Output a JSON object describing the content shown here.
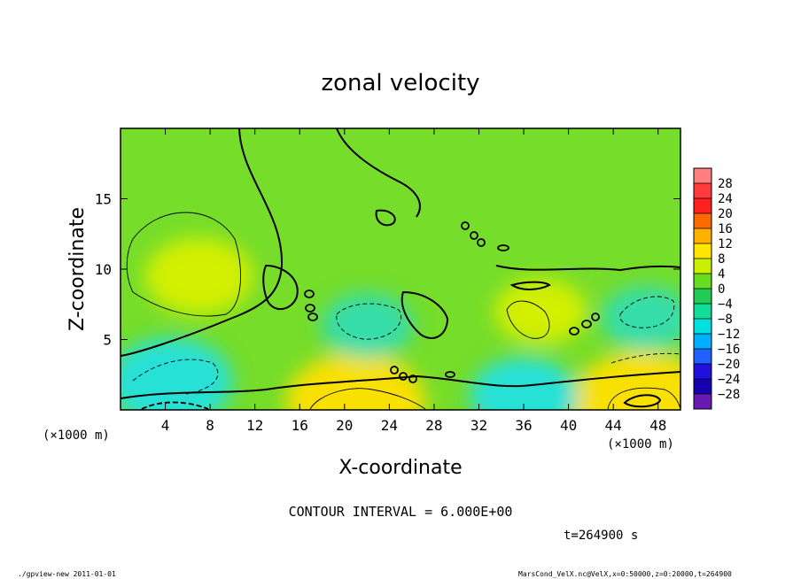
{
  "chart_data": {
    "type": "heatmap",
    "title": "zonal velocity",
    "xlabel": "X-coordinate",
    "ylabel": "Z-coordinate",
    "x_unit": "(×1000 m)",
    "y_unit": "(×1000 m)",
    "xlim": [
      0,
      50
    ],
    "ylim": [
      0,
      20
    ],
    "x_ticks": [
      4,
      8,
      12,
      16,
      20,
      24,
      28,
      32,
      36,
      40,
      44,
      48
    ],
    "y_ticks": [
      5,
      10,
      15
    ],
    "contour_interval_text": "CONTOUR INTERVAL = 6.000E+00",
    "time_text": "t=264900 s",
    "colorbar": {
      "levels": [
        28,
        24,
        20,
        16,
        12,
        8,
        4,
        0,
        -4,
        -8,
        -12,
        -16,
        -20,
        -24,
        -28
      ],
      "colors": [
        "#ff7f7f",
        "#ff3b3b",
        "#ff2020",
        "#ff6a00",
        "#ffb000",
        "#ffe600",
        "#c8f000",
        "#66dd22",
        "#22cc55",
        "#11dd99",
        "#00e0e0",
        "#00b0ff",
        "#2060ff",
        "#2010e0",
        "#1800b0",
        "#6a1ab0"
      ]
    },
    "field_features": [
      {
        "kind": "positive",
        "x": 7,
        "z": 9.5,
        "value": 8
      },
      {
        "kind": "positive",
        "x": 21,
        "z": 0.5,
        "value": 12
      },
      {
        "kind": "positive",
        "x": 46.5,
        "z": 0.6,
        "value": 12
      },
      {
        "kind": "positive",
        "x": 37.5,
        "z": 7,
        "value": 6
      },
      {
        "kind": "negative",
        "x": 4.5,
        "z": 2,
        "value": -10
      },
      {
        "kind": "negative",
        "x": 22,
        "z": 6,
        "value": -6
      },
      {
        "kind": "negative",
        "x": 36,
        "z": 1,
        "value": -8
      },
      {
        "kind": "negative",
        "x": 47,
        "z": 6.5,
        "value": -6
      }
    ]
  },
  "footer": {
    "left": "./gpview-new   2011-01-01",
    "right": "MarsCond_VelX.nc@VelX,x=0:50000,z=0:20000,t=264900"
  }
}
